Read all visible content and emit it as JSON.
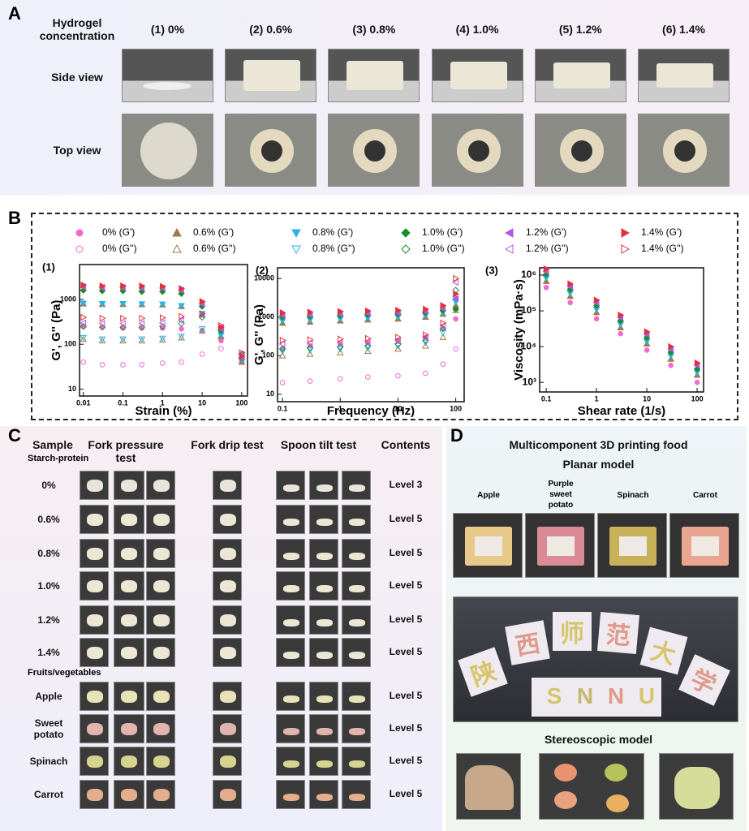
{
  "panel_a": {
    "label": "A",
    "header": "Hydrogel concentration",
    "columns": [
      "(1) 0%",
      "(2) 0.6%",
      "(3) 0.8%",
      "(4) 1.0%",
      "(5) 1.2%",
      "(6) 1.4%"
    ],
    "rows": [
      "Side view",
      "Top view"
    ]
  },
  "panel_b": {
    "label": "B"
  },
  "chart_data": [
    {
      "type": "scatter",
      "title": "(1)",
      "x_label": "Strain (%)",
      "y_label": "G', G'' (Pa)",
      "log_x": true,
      "log_y": true,
      "legend": "top",
      "x": [
        0.01,
        0.03,
        0.1,
        0.3,
        1,
        3,
        10,
        30,
        100
      ],
      "xlim": [
        0.008,
        140
      ],
      "xticks": [
        0.01,
        0.1,
        1,
        10,
        100
      ],
      "ylim": [
        7,
        6000
      ],
      "yticks": [
        10,
        100,
        1000
      ],
      "series": [
        {
          "name": "0% (G')",
          "color": "#f06bd0",
          "marker": "circle",
          "filled": true,
          "values": [
            250,
            240,
            230,
            230,
            230,
            220,
            200,
            120,
            40
          ]
        },
        {
          "name": "0% (G'')",
          "color": "#f06bd0",
          "marker": "circle",
          "filled": false,
          "values": [
            40,
            35,
            35,
            35,
            38,
            40,
            60,
            80,
            50
          ]
        },
        {
          "name": "0.6% (G')",
          "color": "#a0784a",
          "marker": "up",
          "filled": true,
          "values": [
            800,
            780,
            780,
            770,
            760,
            700,
            450,
            150,
            40
          ]
        },
        {
          "name": "0.6% (G'')",
          "color": "#a0784a",
          "marker": "up",
          "filled": false,
          "values": [
            130,
            120,
            120,
            120,
            125,
            140,
            200,
            150,
            50
          ]
        },
        {
          "name": "0.8% (G')",
          "color": "#28b4e6",
          "marker": "down",
          "filled": true,
          "values": [
            820,
            800,
            800,
            790,
            780,
            720,
            480,
            160,
            45
          ]
        },
        {
          "name": "0.8% (G'')",
          "color": "#28b4e6",
          "marker": "down",
          "filled": false,
          "values": [
            140,
            130,
            130,
            130,
            135,
            150,
            220,
            160,
            55
          ]
        },
        {
          "name": "1.0% (G')",
          "color": "#1a8c2a",
          "marker": "diamond",
          "filled": true,
          "values": [
            1600,
            1550,
            1550,
            1500,
            1500,
            1350,
            700,
            200,
            50
          ]
        },
        {
          "name": "1.0% (G'')",
          "color": "#1a8c2a",
          "marker": "diamond",
          "filled": false,
          "values": [
            250,
            240,
            240,
            240,
            250,
            290,
            400,
            220,
            60
          ]
        },
        {
          "name": "1.2% (G')",
          "color": "#b058e0",
          "marker": "left",
          "filled": true,
          "values": [
            1900,
            1850,
            1850,
            1800,
            1800,
            1600,
            800,
            220,
            50
          ]
        },
        {
          "name": "1.2% (G'')",
          "color": "#b058e0",
          "marker": "left",
          "filled": false,
          "values": [
            300,
            290,
            290,
            290,
            300,
            340,
            450,
            240,
            60
          ]
        },
        {
          "name": "1.4% (G')",
          "color": "#e0303a",
          "marker": "right",
          "filled": true,
          "values": [
            2100,
            2000,
            2000,
            2000,
            1950,
            1750,
            900,
            240,
            55
          ]
        },
        {
          "name": "1.4% (G'')",
          "color": "#e0303a",
          "marker": "right",
          "filled": false,
          "values": [
            400,
            380,
            380,
            380,
            390,
            420,
            480,
            260,
            65
          ]
        }
      ]
    },
    {
      "type": "scatter",
      "title": "(2)",
      "x_label": "Frequency (Hz)",
      "y_label": "G', G'' (Pa)",
      "log_x": true,
      "log_y": true,
      "x": [
        0.1,
        0.3,
        1,
        3,
        10,
        30,
        60,
        100
      ],
      "xlim": [
        0.082,
        140
      ],
      "xticks": [
        0.1,
        1,
        10,
        100
      ],
      "ylim": [
        6.4,
        19000
      ],
      "yticks": [
        10,
        100,
        1000,
        10000
      ],
      "series": [
        {
          "color": "#f06bd0",
          "marker": "circle",
          "filled": true,
          "values": [
            150,
            180,
            200,
            220,
            250,
            300,
            500,
            900
          ]
        },
        {
          "color": "#f06bd0",
          "marker": "circle",
          "filled": false,
          "values": [
            20,
            22,
            25,
            28,
            30,
            35,
            60,
            150
          ]
        },
        {
          "color": "#a0784a",
          "marker": "up",
          "filled": true,
          "values": [
            700,
            750,
            800,
            850,
            900,
            1000,
            1200,
            2000
          ]
        },
        {
          "color": "#a0784a",
          "marker": "up",
          "filled": false,
          "values": [
            100,
            110,
            120,
            130,
            150,
            180,
            300,
            1500
          ]
        },
        {
          "color": "#28b4e6",
          "marker": "down",
          "filled": true,
          "values": [
            800,
            850,
            900,
            950,
            1000,
            1100,
            1300,
            2500
          ]
        },
        {
          "color": "#28b4e6",
          "marker": "down",
          "filled": false,
          "values": [
            130,
            140,
            150,
            160,
            180,
            220,
            400,
            3000
          ]
        },
        {
          "color": "#1a8c2a",
          "marker": "diamond",
          "filled": true,
          "values": [
            1000,
            1050,
            1100,
            1150,
            1200,
            1300,
            1500,
            1600
          ]
        },
        {
          "color": "#1a8c2a",
          "marker": "diamond",
          "filled": false,
          "values": [
            150,
            160,
            170,
            180,
            200,
            250,
            500,
            5000
          ]
        },
        {
          "color": "#b058e0",
          "marker": "left",
          "filled": true,
          "values": [
            1100,
            1150,
            1200,
            1250,
            1300,
            1400,
            1700,
            3000
          ]
        },
        {
          "color": "#b058e0",
          "marker": "left",
          "filled": false,
          "values": [
            200,
            210,
            220,
            230,
            250,
            300,
            600,
            8000
          ]
        },
        {
          "color": "#e0303a",
          "marker": "right",
          "filled": true,
          "values": [
            1300,
            1350,
            1400,
            1450,
            1500,
            1600,
            2000,
            4000
          ]
        },
        {
          "color": "#e0303a",
          "marker": "right",
          "filled": false,
          "values": [
            250,
            260,
            270,
            280,
            300,
            350,
            700,
            10000
          ]
        }
      ]
    },
    {
      "type": "scatter",
      "title": "(3)",
      "x_label": "Shear rate (1/s)",
      "y_label": "Viscosity (mPa·s)",
      "log_x": true,
      "log_y": true,
      "x": [
        0.1,
        0.3,
        1,
        3,
        10,
        30,
        100
      ],
      "xlim": [
        0.074,
        134
      ],
      "xticks": [
        0.1,
        1,
        10,
        100
      ],
      "ylim": [
        540,
        1600000
      ],
      "yticks": [
        {
          "value": 1000,
          "label": "10³"
        },
        {
          "value": 10000,
          "label": "10⁴"
        },
        {
          "value": 100000,
          "label": "10⁵"
        },
        {
          "value": 1000000,
          "label": "10⁶"
        }
      ],
      "series": [
        {
          "color": "#f06bd0",
          "marker": "circle",
          "filled": true,
          "values": [
            450000,
            171000,
            60000,
            23000,
            8000,
            3000,
            1000
          ]
        },
        {
          "color": "#a0784a",
          "marker": "up",
          "filled": true,
          "values": [
            675000,
            256000,
            90000,
            34000,
            12000,
            4500,
            1600
          ]
        },
        {
          "color": "#28b4e6",
          "marker": "down",
          "filled": true,
          "values": [
            825000,
            313000,
            110000,
            42000,
            14000,
            5500,
            1900
          ]
        },
        {
          "color": "#1a8c2a",
          "marker": "diamond",
          "filled": true,
          "values": [
            1050000,
            400000,
            140000,
            53000,
            18000,
            7000,
            2400
          ]
        },
        {
          "color": "#b058e0",
          "marker": "left",
          "filled": true,
          "values": [
            1275000,
            485000,
            170000,
            65000,
            22000,
            8500,
            3000
          ]
        },
        {
          "color": "#e0303a",
          "marker": "right",
          "filled": true,
          "values": [
            1500000,
            570000,
            200000,
            76000,
            26000,
            10000,
            3500
          ]
        }
      ]
    }
  ],
  "panel_c": {
    "label": "C",
    "headers": [
      "Sample",
      "Fork pressure test",
      "Fork drip test",
      "Spoon tilt test",
      "Contents"
    ],
    "groups": [
      {
        "name": "Starch-protein",
        "samples": [
          {
            "name": "0%",
            "content": "Level 3"
          },
          {
            "name": "0.6%",
            "content": "Level 5"
          },
          {
            "name": "0.8%",
            "content": "Level 5"
          },
          {
            "name": "1.0%",
            "content": "Level 5"
          },
          {
            "name": "1.2%",
            "content": "Level 5"
          },
          {
            "name": "1.4%",
            "content": "Level 5"
          }
        ]
      },
      {
        "name": "Fruits/vegetables",
        "samples": [
          {
            "name": "Apple",
            "content": "Level 5"
          },
          {
            "name": "Sweet potato",
            "content": "Level 5"
          },
          {
            "name": "Spinach",
            "content": "Level 5"
          },
          {
            "name": "Carrot",
            "content": "Level 5"
          }
        ]
      }
    ]
  },
  "panel_d": {
    "label": "D",
    "title": "Multicomponent 3D printing food",
    "planar_title": "Planar model",
    "planar_items": [
      "Apple",
      "Purple sweet potato",
      "Spinach",
      "Carrot"
    ],
    "characters": [
      "陕",
      "西",
      "师",
      "范",
      "大",
      "学"
    ],
    "letters": [
      "S",
      "N",
      "N",
      "U"
    ],
    "stereo_title": "Stereoscopic model"
  }
}
